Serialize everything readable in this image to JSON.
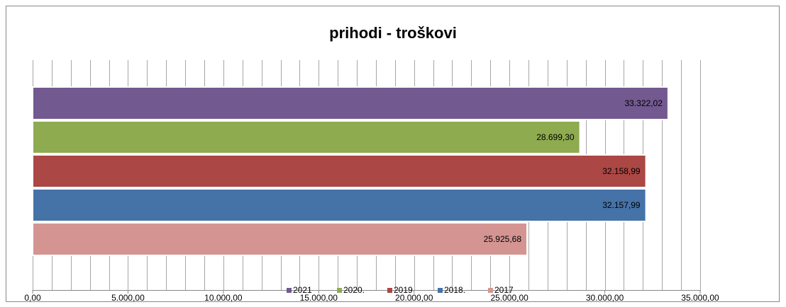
{
  "chart_data": {
    "type": "bar",
    "orientation": "horizontal",
    "title": "prihodi - troškovi",
    "series": [
      {
        "name": "2021",
        "color": "#725990",
        "values": [
          33322.02
        ],
        "value_labels": [
          "33.322,02"
        ]
      },
      {
        "name": "2020.",
        "color": "#8eab50",
        "values": [
          28699.3
        ],
        "value_labels": [
          "28.699,30"
        ]
      },
      {
        "name": "2019",
        "color": "#ab4744",
        "values": [
          32158.99
        ],
        "value_labels": [
          "32.158,99"
        ]
      },
      {
        "name": "2018.",
        "color": "#4572a7",
        "values": [
          32157.99
        ],
        "value_labels": [
          "32.157,99"
        ]
      },
      {
        "name": "2017",
        "color": "#d49592",
        "values": [
          25925.68
        ],
        "value_labels": [
          "25.925,68"
        ]
      }
    ],
    "xlim": [
      0,
      35000
    ],
    "xticks": [
      {
        "value": 0,
        "label": "0,00"
      },
      {
        "value": 5000,
        "label": "5.000,00"
      },
      {
        "value": 10000,
        "label": "10.000,00"
      },
      {
        "value": 15000,
        "label": "15.000,00"
      },
      {
        "value": 20000,
        "label": "20.000,00"
      },
      {
        "value": 25000,
        "label": "25.000,00"
      },
      {
        "value": 30000,
        "label": "30.000,00"
      },
      {
        "value": 35000,
        "label": "35.000,00"
      }
    ],
    "xminorticks": [
      0,
      1000,
      2000,
      3000,
      4000,
      5000,
      6000,
      7000,
      8000,
      9000,
      10000,
      11000,
      12000,
      13000,
      14000,
      15000,
      16000,
      17000,
      18000,
      19000,
      20000,
      21000,
      22000,
      23000,
      24000,
      25000,
      26000,
      27000,
      28000,
      29000,
      30000,
      31000,
      32000,
      33000,
      34000,
      35000
    ],
    "grid": true,
    "legend": "bottom"
  }
}
